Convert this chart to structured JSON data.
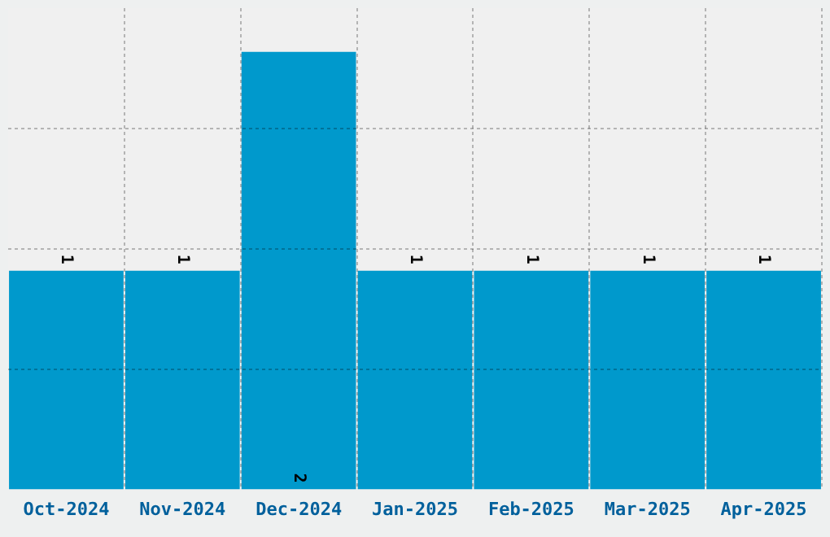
{
  "chart_data": {
    "type": "bar",
    "categories": [
      "Oct-2024",
      "Nov-2024",
      "Dec-2024",
      "Jan-2025",
      "Feb-2025",
      "Mar-2025",
      "Apr-2025"
    ],
    "values": [
      1,
      1,
      2,
      1,
      1,
      1,
      1
    ],
    "color": "#0099cc",
    "ylim": [
      0,
      2.2
    ],
    "yticks": [
      {
        "value": 0.55,
        "label": null
      },
      {
        "value": 1.1,
        "label": null
      },
      {
        "value": 1.65,
        "label": null
      }
    ],
    "tick_labels": "x",
    "grid": true,
    "data_labels": true,
    "legend": false
  }
}
